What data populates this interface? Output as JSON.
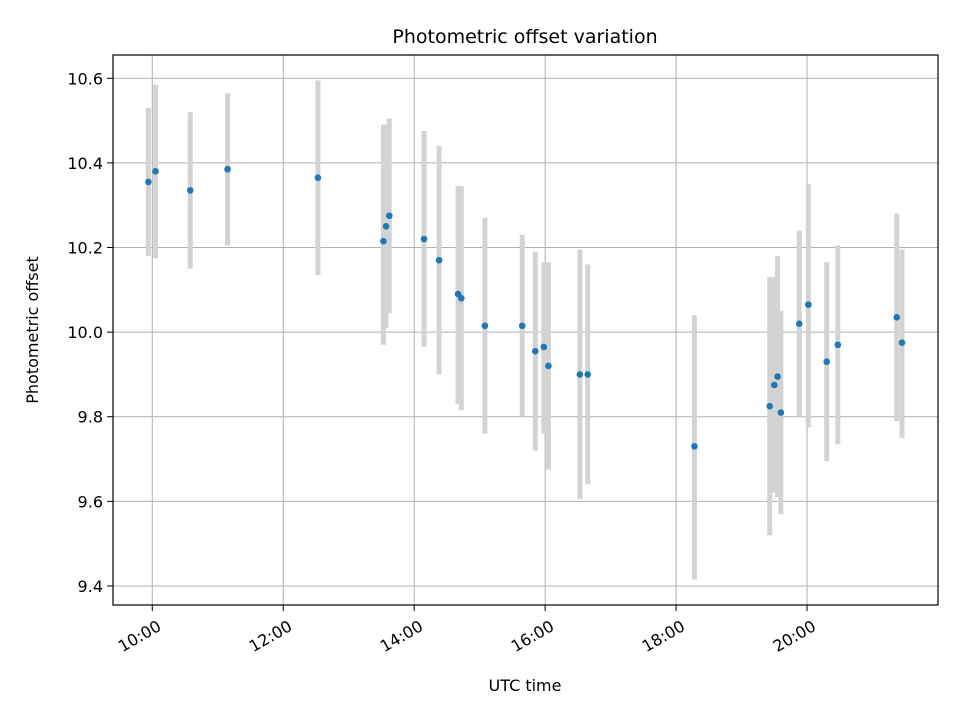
{
  "chart_data": {
    "type": "scatter",
    "title": "Photometric offset variation",
    "xlabel": "UTC time",
    "ylabel": "Photometric offset",
    "x_unit": "hours (UTC time of day)",
    "xlim": [
      9.4,
      22.0
    ],
    "ylim": [
      9.355,
      10.655
    ],
    "xticks": [
      10,
      12,
      14,
      16,
      18,
      20
    ],
    "xtick_labels": [
      "10:00",
      "12:00",
      "14:00",
      "16:00",
      "18:00",
      "20:00"
    ],
    "yticks": [
      9.4,
      9.6,
      9.8,
      10.0,
      10.2,
      10.4,
      10.6
    ],
    "ytick_labels": [
      "9.4",
      "9.6",
      "9.8",
      "10.0",
      "10.2",
      "10.4",
      "10.6"
    ],
    "grid": true,
    "marker_color": "#1f77b4",
    "errorbar_color": "#d3d3d3",
    "points": [
      {
        "x": 9.94,
        "y": 10.355,
        "lo": 10.18,
        "hi": 10.53
      },
      {
        "x": 10.05,
        "y": 10.38,
        "lo": 10.175,
        "hi": 10.585
      },
      {
        "x": 10.58,
        "y": 10.335,
        "lo": 10.15,
        "hi": 10.52
      },
      {
        "x": 11.15,
        "y": 10.385,
        "lo": 10.205,
        "hi": 10.565
      },
      {
        "x": 12.53,
        "y": 10.365,
        "lo": 10.135,
        "hi": 10.595
      },
      {
        "x": 13.53,
        "y": 10.215,
        "lo": 9.97,
        "hi": 10.49
      },
      {
        "x": 13.57,
        "y": 10.25,
        "lo": 10.01,
        "hi": 10.49
      },
      {
        "x": 13.62,
        "y": 10.275,
        "lo": 10.045,
        "hi": 10.505
      },
      {
        "x": 14.15,
        "y": 10.22,
        "lo": 9.965,
        "hi": 10.475
      },
      {
        "x": 14.38,
        "y": 10.17,
        "lo": 9.9,
        "hi": 10.44
      },
      {
        "x": 14.67,
        "y": 10.09,
        "lo": 9.83,
        "hi": 10.345
      },
      {
        "x": 14.72,
        "y": 10.08,
        "lo": 9.815,
        "hi": 10.345
      },
      {
        "x": 15.08,
        "y": 10.015,
        "lo": 9.76,
        "hi": 10.27
      },
      {
        "x": 15.65,
        "y": 10.015,
        "lo": 9.8,
        "hi": 10.23
      },
      {
        "x": 15.85,
        "y": 9.955,
        "lo": 9.72,
        "hi": 10.19
      },
      {
        "x": 15.98,
        "y": 9.965,
        "lo": 9.76,
        "hi": 10.165
      },
      {
        "x": 16.05,
        "y": 9.92,
        "lo": 9.675,
        "hi": 10.165
      },
      {
        "x": 16.53,
        "y": 9.9,
        "lo": 9.605,
        "hi": 10.195
      },
      {
        "x": 16.65,
        "y": 9.9,
        "lo": 9.64,
        "hi": 10.16
      },
      {
        "x": 18.28,
        "y": 9.73,
        "lo": 9.415,
        "hi": 10.04
      },
      {
        "x": 19.43,
        "y": 9.825,
        "lo": 9.52,
        "hi": 10.13
      },
      {
        "x": 19.5,
        "y": 9.875,
        "lo": 9.62,
        "hi": 10.13
      },
      {
        "x": 19.55,
        "y": 9.895,
        "lo": 9.61,
        "hi": 10.18
      },
      {
        "x": 19.6,
        "y": 9.81,
        "lo": 9.57,
        "hi": 10.05
      },
      {
        "x": 19.88,
        "y": 10.02,
        "lo": 9.8,
        "hi": 10.24
      },
      {
        "x": 20.02,
        "y": 10.065,
        "lo": 9.775,
        "hi": 10.35
      },
      {
        "x": 20.3,
        "y": 9.93,
        "lo": 9.695,
        "hi": 10.165
      },
      {
        "x": 20.47,
        "y": 9.97,
        "lo": 9.735,
        "hi": 10.205
      },
      {
        "x": 21.37,
        "y": 10.035,
        "lo": 9.79,
        "hi": 10.28
      },
      {
        "x": 21.45,
        "y": 9.975,
        "lo": 9.75,
        "hi": 10.195
      }
    ]
  }
}
